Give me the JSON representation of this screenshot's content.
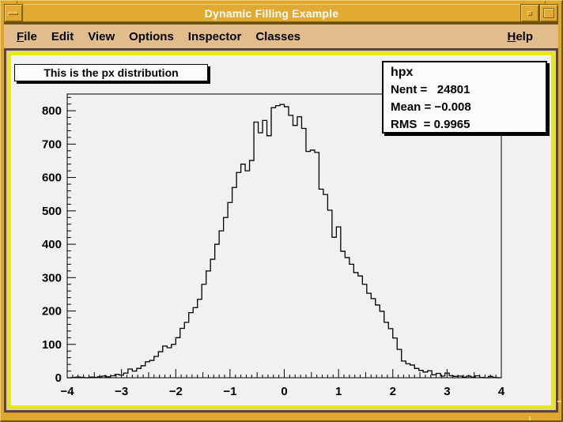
{
  "window": {
    "title": "Dynamic Filling Example"
  },
  "menu": {
    "items": [
      {
        "label": "File",
        "underline": true
      },
      {
        "label": "Edit",
        "underline": false
      },
      {
        "label": "View",
        "underline": false
      },
      {
        "label": "Options",
        "underline": false
      },
      {
        "label": "Inspector",
        "underline": false
      },
      {
        "label": "Classes",
        "underline": false
      }
    ],
    "help": {
      "label": "Help",
      "underline": true
    }
  },
  "canvas": {
    "title_pave": {
      "text": "This is the px distribution"
    },
    "stats_pave": {
      "name": "hpx",
      "rows": [
        "Nent =   24801",
        "Mean = −0.008",
        "RMS  = 0.9965"
      ]
    }
  },
  "chart_data": {
    "type": "histogram-step",
    "title": "This is the px distribution",
    "hist_name": "hpx",
    "entries": 24801,
    "mean": -0.008,
    "rms": 0.9965,
    "bins": 100,
    "xmin": -4,
    "xmax": 4,
    "ylim": [
      0,
      850
    ],
    "xlabel": "",
    "ylabel": "",
    "grid": false,
    "legend": "none",
    "x_tick_labels": [
      "−4",
      "−3",
      "−2",
      "−1",
      "0",
      "1",
      "2",
      "3",
      "4"
    ],
    "y_tick_labels": [
      "0",
      "100",
      "200",
      "300",
      "400",
      "500",
      "600",
      "700",
      "800"
    ],
    "y_major_step": 100,
    "y_minor_step": 20,
    "x_major_step": 1,
    "x_minor_step": 0.1,
    "values": [
      0,
      1,
      2,
      1,
      0,
      2,
      1,
      3,
      5,
      3,
      6,
      10,
      8,
      14,
      26,
      20,
      28,
      36,
      48,
      52,
      64,
      78,
      95,
      90,
      100,
      120,
      148,
      166,
      195,
      210,
      235,
      280,
      320,
      355,
      400,
      440,
      480,
      525,
      570,
      615,
      640,
      620,
      651,
      766,
      734,
      771,
      725,
      809,
      815,
      819,
      812,
      786,
      756,
      782,
      747,
      678,
      682,
      675,
      565,
      549,
      502,
      421,
      452,
      379,
      360,
      340,
      315,
      305,
      280,
      253,
      237,
      218,
      199,
      166,
      147,
      119,
      85,
      50,
      42,
      38,
      28,
      22,
      17,
      21,
      9,
      13,
      5,
      14,
      6,
      4,
      5,
      2,
      5,
      2,
      6,
      1,
      0,
      4,
      1,
      0
    ],
    "line_color": "#000000"
  },
  "colors": {
    "titlebar_amber": "#E2AA32",
    "window_border_amber": "#DFA62E",
    "menubar_tan": "#E2BD8C",
    "frame_maroon": "#5A4242",
    "pad_highlight_yellow": "#EAEA00",
    "canvas_gray": "#F1F1F1",
    "pave_white": "#FCFCFC",
    "text_black": "#000000",
    "title_text_white": "#FFFFFF"
  }
}
